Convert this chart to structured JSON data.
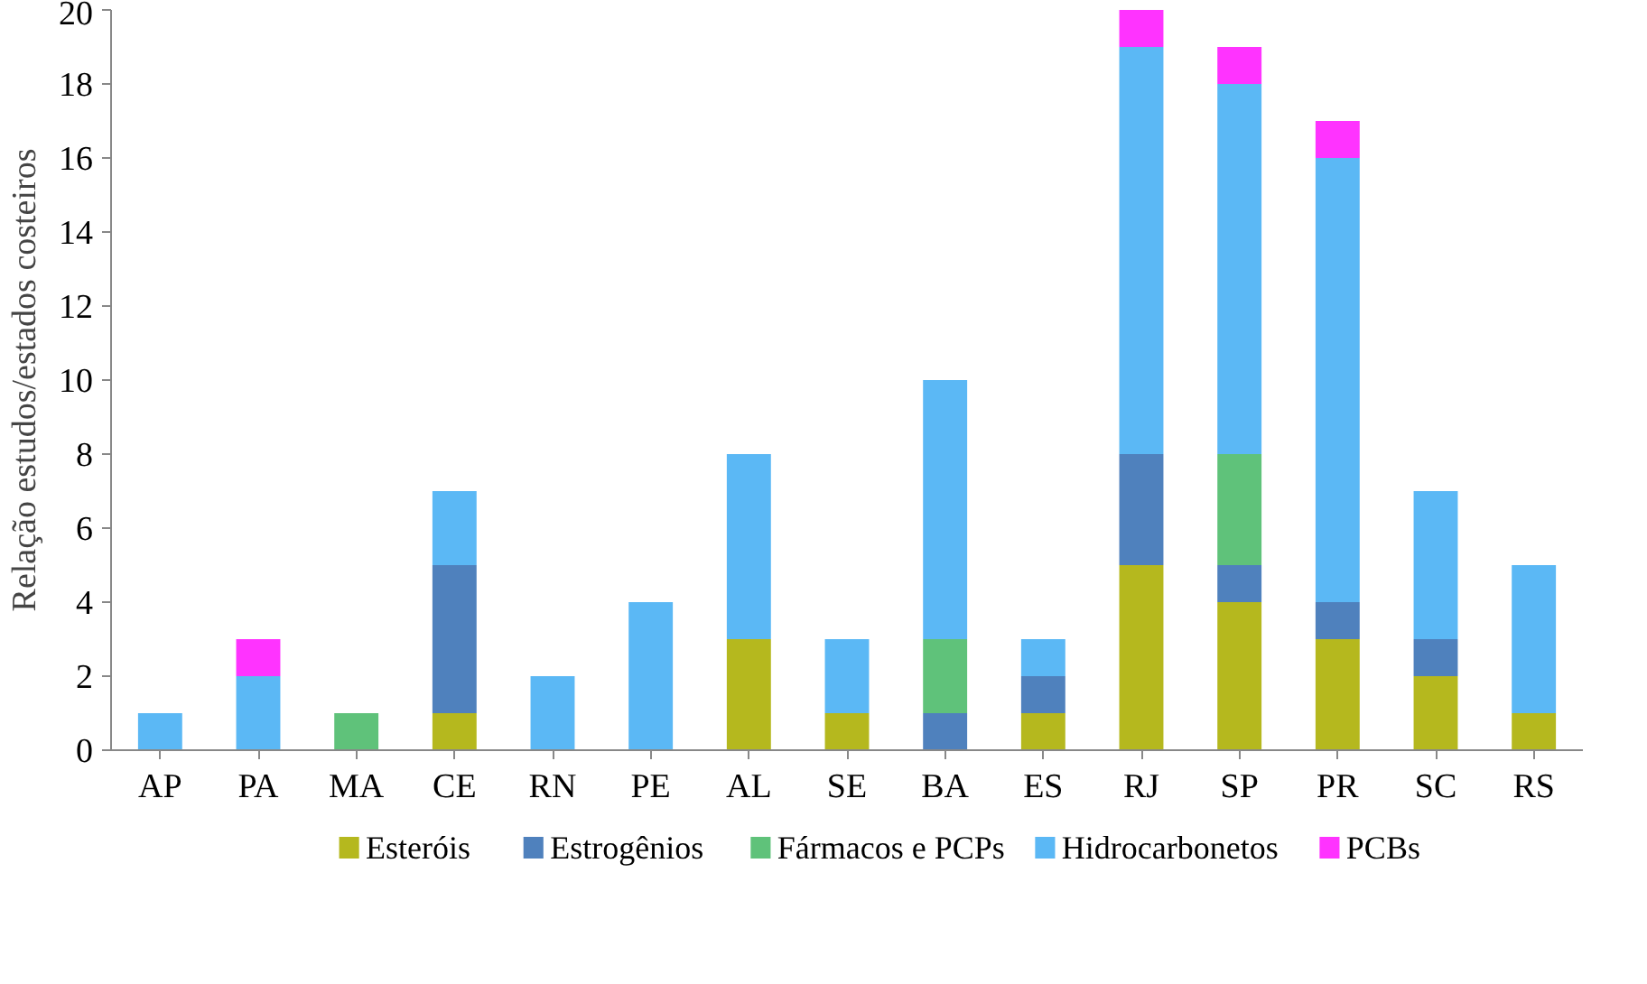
{
  "chart_data": {
    "type": "bar",
    "stacked": true,
    "ylabel": "Relação estudos/estados costeiros",
    "categories": [
      "AP",
      "PA",
      "MA",
      "CE",
      "RN",
      "PE",
      "AL",
      "SE",
      "BA",
      "ES",
      "RJ",
      "SP",
      "PR",
      "SC",
      "RS"
    ],
    "series": [
      {
        "name": "Esteróis",
        "color": "#b5b81e",
        "values": [
          0,
          0,
          0,
          1,
          0,
          0,
          3,
          1,
          0,
          1,
          5,
          4,
          3,
          2,
          1
        ]
      },
      {
        "name": "Estrogênios",
        "color": "#4f81bd",
        "values": [
          0,
          0,
          0,
          4,
          0,
          0,
          0,
          0,
          1,
          1,
          3,
          1,
          1,
          1,
          0
        ]
      },
      {
        "name": "Fármacos e PCPs",
        "color": "#5fc27a",
        "values": [
          0,
          0,
          1,
          0,
          0,
          0,
          0,
          0,
          2,
          0,
          0,
          3,
          0,
          0,
          0
        ]
      },
      {
        "name": "Hidrocarbonetos",
        "color": "#5bb8f5",
        "values": [
          1,
          2,
          0,
          2,
          2,
          4,
          5,
          2,
          7,
          1,
          11,
          10,
          12,
          4,
          4
        ]
      },
      {
        "name": "PCBs",
        "color": "#ff33ff",
        "values": [
          0,
          1,
          0,
          0,
          0,
          0,
          0,
          0,
          0,
          0,
          1,
          1,
          1,
          0,
          0
        ]
      }
    ],
    "ylim": [
      0,
      20
    ],
    "yticks": [
      0,
      2,
      4,
      6,
      8,
      10,
      12,
      14,
      16,
      18,
      20
    ],
    "grid": false,
    "legend": "bottom"
  }
}
